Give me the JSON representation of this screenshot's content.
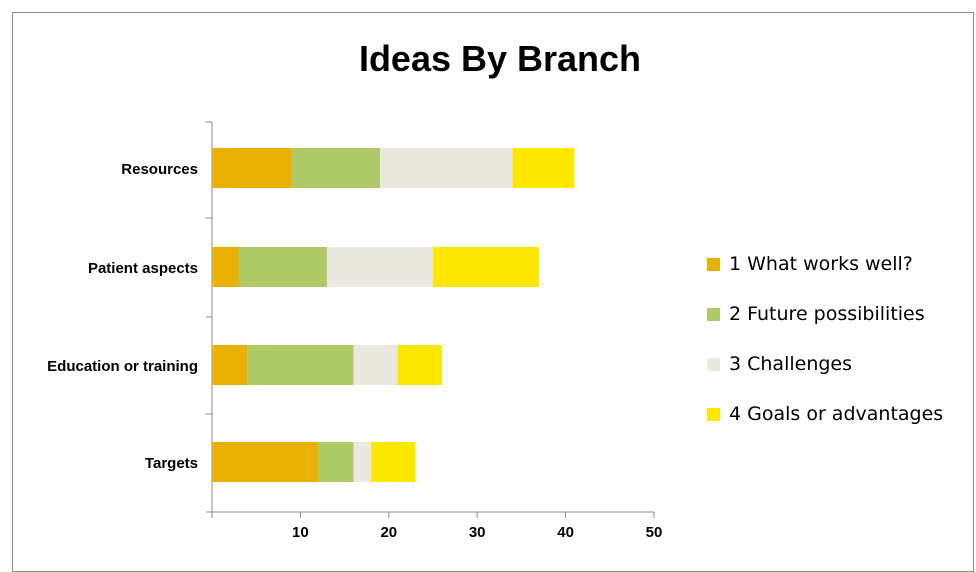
{
  "chart_data": {
    "type": "bar",
    "orientation": "horizontal",
    "stacked": true,
    "title": "Ideas By Branch",
    "xlabel": "",
    "ylabel": "",
    "categories": [
      "Resources",
      "Patient aspects",
      "Education or training",
      "Targets"
    ],
    "xlim": [
      0,
      50
    ],
    "xticks": [
      10,
      20,
      30,
      40,
      50
    ],
    "grid": false,
    "legend_position": "right",
    "series": [
      {
        "name": "1 What works well?",
        "color": "#e9b104",
        "values": [
          9,
          3,
          4,
          12
        ]
      },
      {
        "name": "2 Future possibilities",
        "color": "#afc966",
        "values": [
          10,
          10,
          12,
          4
        ]
      },
      {
        "name": "3 Challenges",
        "color": "#ebe8e0",
        "values": [
          15,
          12,
          5,
          2
        ]
      },
      {
        "name": "4 Goals or advantages",
        "color": "#fce700",
        "values": [
          7,
          12,
          5,
          5
        ]
      }
    ]
  }
}
